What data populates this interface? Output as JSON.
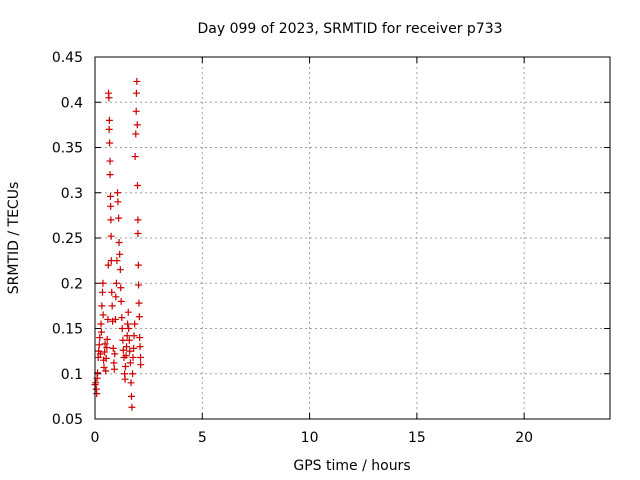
{
  "chart_data": {
    "type": "scatter",
    "title": "Day 099 of 2023, SRMTID for receiver p733",
    "xlabel": "GPS time / hours",
    "ylabel": "SRMTID / TECUs",
    "xlim": [
      0,
      24
    ],
    "ylim": [
      0.05,
      0.45
    ],
    "xticks": [
      0,
      5,
      10,
      15,
      20
    ],
    "xtick_labels": [
      "0",
      "5",
      "10",
      "15",
      "20"
    ],
    "yticks": [
      0.05,
      0.1,
      0.15,
      0.2,
      0.25,
      0.3,
      0.35,
      0.4,
      0.45
    ],
    "ytick_labels": [
      "0.05",
      "0.1",
      "0.15",
      "0.2",
      "0.25",
      "0.3",
      "0.35",
      "0.4",
      "0.45"
    ],
    "grid": true,
    "marker": "+",
    "series": [
      {
        "name": "p733",
        "color": "#cc0000",
        "points": [
          [
            0.0,
            0.088
          ],
          [
            0.03,
            0.09
          ],
          [
            0.06,
            0.083
          ],
          [
            0.08,
            0.078
          ],
          [
            0.1,
            0.095
          ],
          [
            0.12,
            0.101
          ],
          [
            0.15,
            0.118
          ],
          [
            0.17,
            0.125
          ],
          [
            0.2,
            0.132
          ],
          [
            0.22,
            0.14
          ],
          [
            0.25,
            0.122
          ],
          [
            0.28,
            0.155
          ],
          [
            0.3,
            0.146
          ],
          [
            0.32,
            0.175
          ],
          [
            0.35,
            0.19
          ],
          [
            0.37,
            0.2
          ],
          [
            0.38,
            0.165
          ],
          [
            0.4,
            0.115
          ],
          [
            0.42,
            0.107
          ],
          [
            0.45,
            0.124
          ],
          [
            0.47,
            0.133
          ],
          [
            0.5,
            0.103
          ],
          [
            0.52,
            0.117
          ],
          [
            0.55,
            0.129
          ],
          [
            0.57,
            0.138
          ],
          [
            0.6,
            0.16
          ],
          [
            0.62,
            0.22
          ],
          [
            0.63,
            0.41
          ],
          [
            0.65,
            0.405
          ],
          [
            0.66,
            0.37
          ],
          [
            0.67,
            0.38
          ],
          [
            0.68,
            0.355
          ],
          [
            0.7,
            0.335
          ],
          [
            0.7,
            0.32
          ],
          [
            0.72,
            0.296
          ],
          [
            0.73,
            0.285
          ],
          [
            0.74,
            0.27
          ],
          [
            0.75,
            0.252
          ],
          [
            0.76,
            0.225
          ],
          [
            0.78,
            0.19
          ],
          [
            0.8,
            0.175
          ],
          [
            0.82,
            0.158
          ],
          [
            0.85,
            0.128
          ],
          [
            0.88,
            0.112
          ],
          [
            0.9,
            0.105
          ],
          [
            0.92,
            0.122
          ],
          [
            0.95,
            0.16
          ],
          [
            0.97,
            0.185
          ],
          [
            1.0,
            0.2
          ],
          [
            1.02,
            0.225
          ],
          [
            1.05,
            0.3
          ],
          [
            1.07,
            0.29
          ],
          [
            1.1,
            0.272
          ],
          [
            1.12,
            0.245
          ],
          [
            1.15,
            0.232
          ],
          [
            1.18,
            0.215
          ],
          [
            1.2,
            0.195
          ],
          [
            1.22,
            0.18
          ],
          [
            1.25,
            0.162
          ],
          [
            1.27,
            0.15
          ],
          [
            1.3,
            0.137
          ],
          [
            1.32,
            0.126
          ],
          [
            1.35,
            0.118
          ],
          [
            1.38,
            0.1
          ],
          [
            1.4,
            0.094
          ],
          [
            1.42,
            0.108
          ],
          [
            1.45,
            0.12
          ],
          [
            1.47,
            0.13
          ],
          [
            1.5,
            0.142
          ],
          [
            1.52,
            0.155
          ],
          [
            1.55,
            0.168
          ],
          [
            1.57,
            0.15
          ],
          [
            1.6,
            0.137
          ],
          [
            1.62,
            0.125
          ],
          [
            1.65,
            0.112
          ],
          [
            1.68,
            0.09
          ],
          [
            1.7,
            0.075
          ],
          [
            1.72,
            0.063
          ],
          [
            1.75,
            0.1
          ],
          [
            1.77,
            0.118
          ],
          [
            1.8,
            0.128
          ],
          [
            1.82,
            0.142
          ],
          [
            1.85,
            0.155
          ],
          [
            1.87,
            0.34
          ],
          [
            1.9,
            0.365
          ],
          [
            1.92,
            0.39
          ],
          [
            1.93,
            0.41
          ],
          [
            1.95,
            0.423
          ],
          [
            1.97,
            0.375
          ],
          [
            1.98,
            0.308
          ],
          [
            2.0,
            0.27
          ],
          [
            2.0,
            0.255
          ],
          [
            2.02,
            0.22
          ],
          [
            2.03,
            0.198
          ],
          [
            2.05,
            0.178
          ],
          [
            2.07,
            0.163
          ],
          [
            2.08,
            0.14
          ],
          [
            2.1,
            0.13
          ],
          [
            2.12,
            0.118
          ],
          [
            2.13,
            0.11
          ]
        ]
      }
    ]
  }
}
